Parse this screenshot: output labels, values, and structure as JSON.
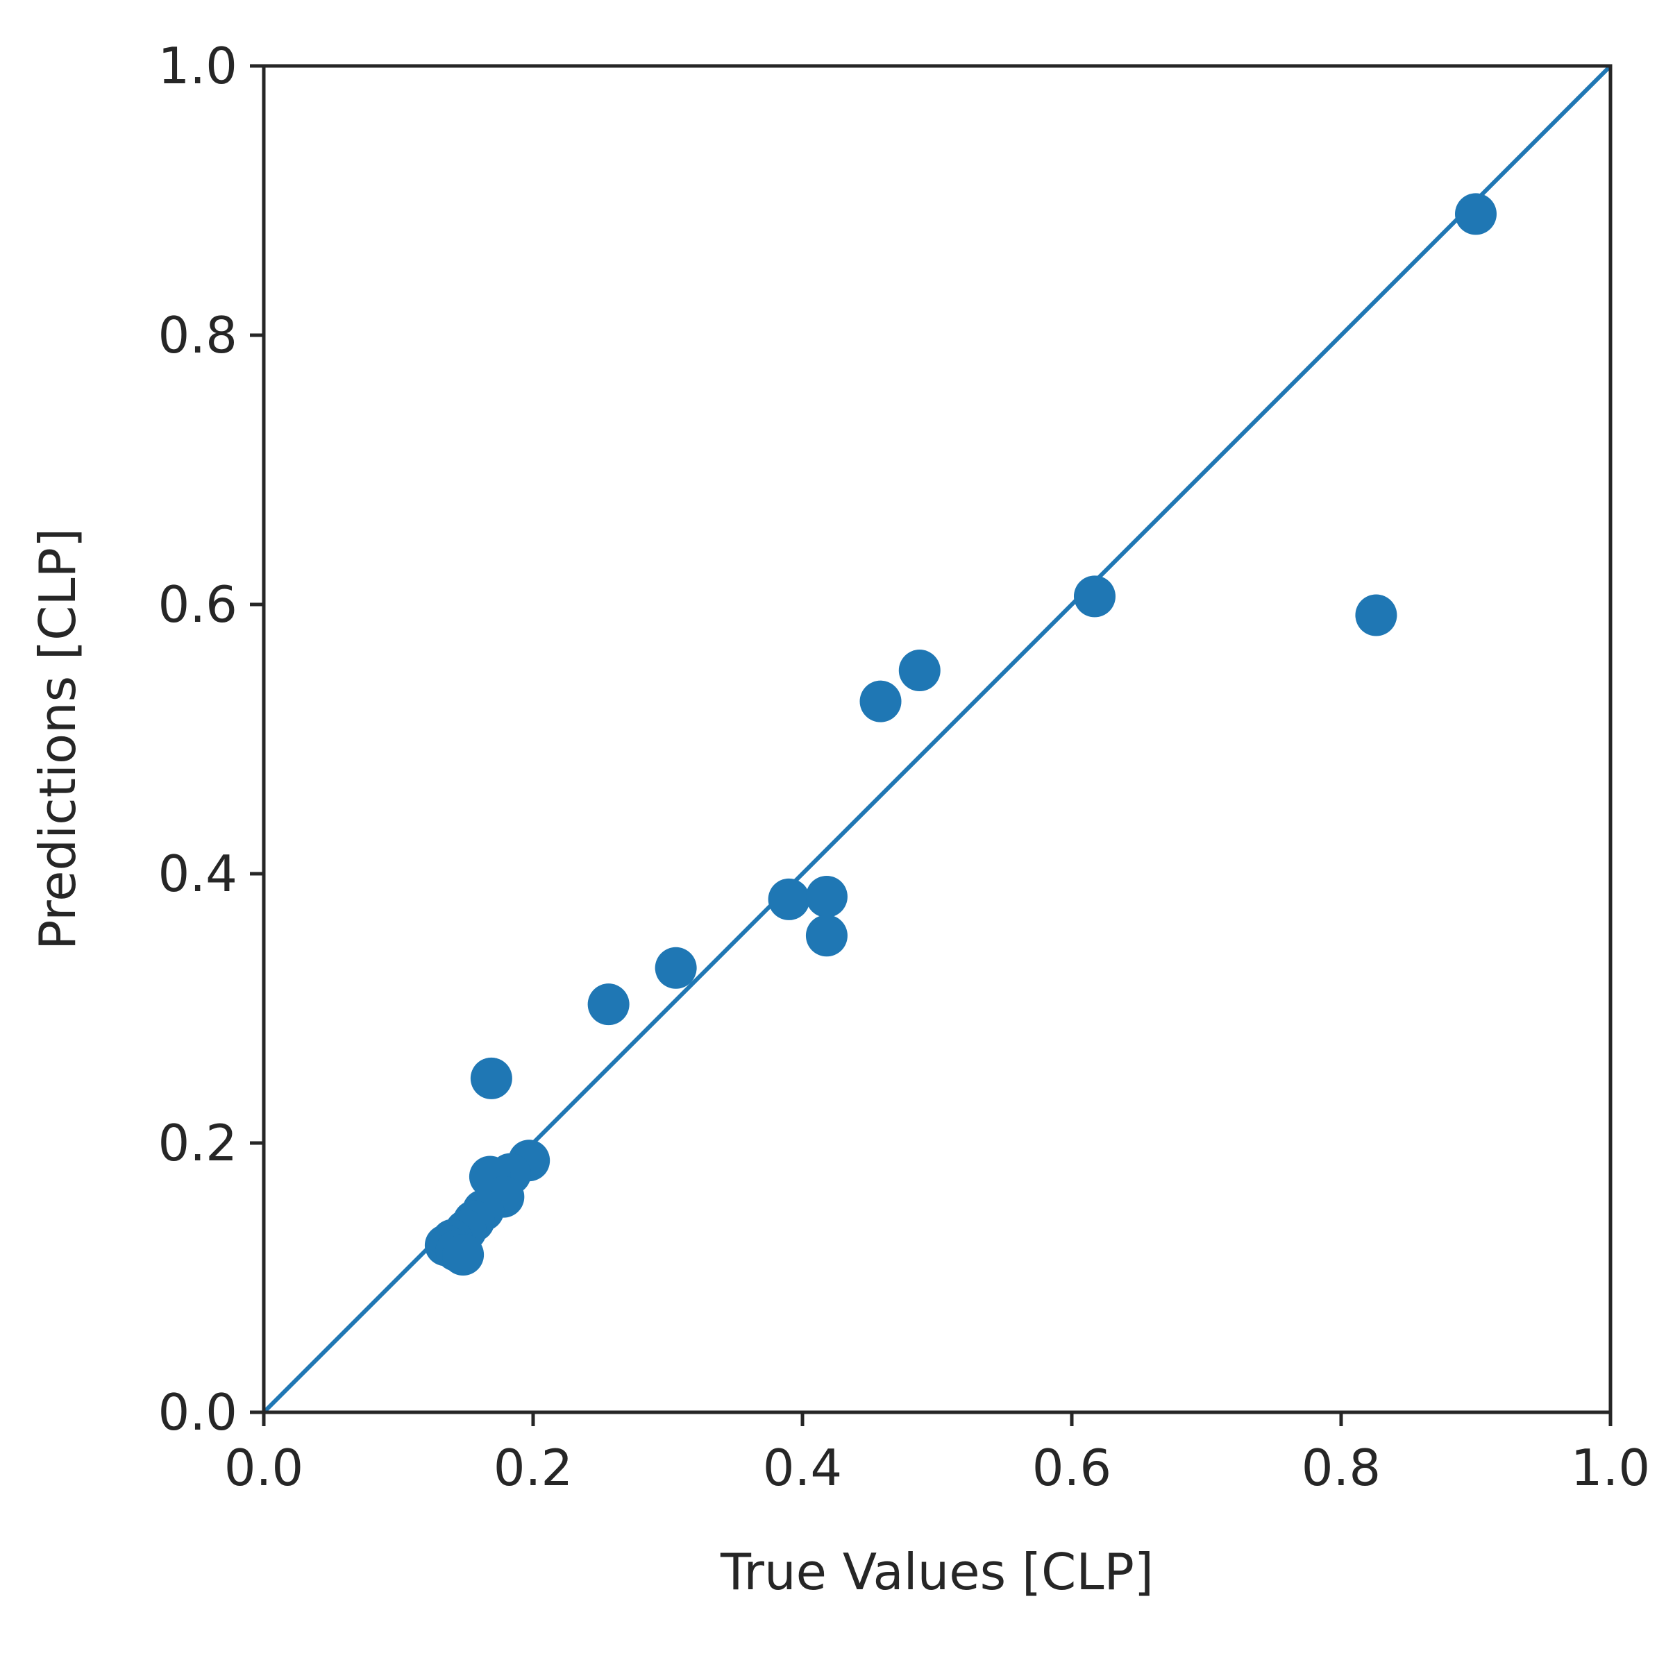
{
  "chart_data": {
    "type": "scatter",
    "title": "",
    "xlabel": "True Values [CLP]",
    "ylabel": "Predictions [CLP]",
    "xlim": [
      0.0,
      1.0
    ],
    "ylim": [
      0.0,
      1.0
    ],
    "xticks": [
      "0.0",
      "0.2",
      "0.4",
      "0.6",
      "0.8",
      "1.0"
    ],
    "yticks": [
      "0.0",
      "0.2",
      "0.4",
      "0.6",
      "0.8",
      "1.0"
    ],
    "grid": false,
    "reference_line": {
      "from": [
        0.0,
        0.0
      ],
      "to": [
        1.0,
        1.0
      ]
    },
    "colors": {
      "marker": "#1f77b4",
      "line": "#1f77b4",
      "axes": "#262626"
    },
    "points": [
      {
        "x": 0.9,
        "y": 0.89
      },
      {
        "x": 0.826,
        "y": 0.592
      },
      {
        "x": 0.617,
        "y": 0.606
      },
      {
        "x": 0.487,
        "y": 0.551
      },
      {
        "x": 0.458,
        "y": 0.528
      },
      {
        "x": 0.39,
        "y": 0.381
      },
      {
        "x": 0.418,
        "y": 0.383
      },
      {
        "x": 0.418,
        "y": 0.354
      },
      {
        "x": 0.306,
        "y": 0.33
      },
      {
        "x": 0.256,
        "y": 0.303
      },
      {
        "x": 0.169,
        "y": 0.248
      },
      {
        "x": 0.197,
        "y": 0.187
      },
      {
        "x": 0.183,
        "y": 0.177
      },
      {
        "x": 0.168,
        "y": 0.175
      },
      {
        "x": 0.178,
        "y": 0.16
      },
      {
        "x": 0.163,
        "y": 0.15
      },
      {
        "x": 0.156,
        "y": 0.142
      },
      {
        "x": 0.15,
        "y": 0.135
      },
      {
        "x": 0.14,
        "y": 0.128
      },
      {
        "x": 0.135,
        "y": 0.124
      },
      {
        "x": 0.143,
        "y": 0.12
      },
      {
        "x": 0.148,
        "y": 0.117
      }
    ]
  }
}
